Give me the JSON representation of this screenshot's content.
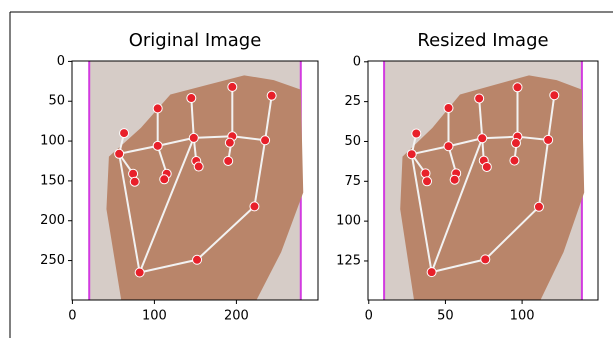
{
  "chart_data": [
    {
      "type": "image",
      "title": "Original Image",
      "xlim": [
        -0.5,
        299.5
      ],
      "ylim": [
        299.5,
        -0.5
      ],
      "xticks": [
        0,
        100,
        200
      ],
      "yticks": [
        0,
        50,
        100,
        150,
        200,
        250
      ],
      "series": [
        {
          "color": "#e8202a",
          "x": [
            82,
            57,
            63,
            74,
            76,
            104,
            104,
            115,
            112,
            148,
            145,
            151,
            154,
            195,
            195,
            190,
            192,
            235,
            243,
            222,
            152
          ],
          "y": [
            265,
            116,
            90,
            141,
            151,
            106,
            59,
            141,
            148,
            96,
            46,
            125,
            132,
            94,
            32,
            125,
            102,
            99,
            43,
            182,
            249
          ]
        }
      ]
    },
    {
      "type": "image",
      "title": "Resized Image",
      "xlim": [
        -0.5,
        149.5
      ],
      "ylim": [
        149.5,
        -0.5
      ],
      "xticks": [
        0,
        50,
        100
      ],
      "yticks": [
        0,
        25,
        50,
        75,
        100,
        125
      ],
      "series": [
        {
          "color": "#e8202a",
          "x": [
            41,
            28,
            31,
            37,
            38,
            52,
            52,
            57,
            56,
            74,
            72,
            75,
            77,
            97,
            97,
            95,
            96,
            117,
            121,
            111,
            76
          ],
          "y": [
            132,
            58,
            45,
            70,
            75,
            53,
            29,
            70,
            74,
            48,
            23,
            62,
            66,
            47,
            16,
            62,
            51,
            49,
            21,
            91,
            124
          ]
        }
      ]
    }
  ]
}
